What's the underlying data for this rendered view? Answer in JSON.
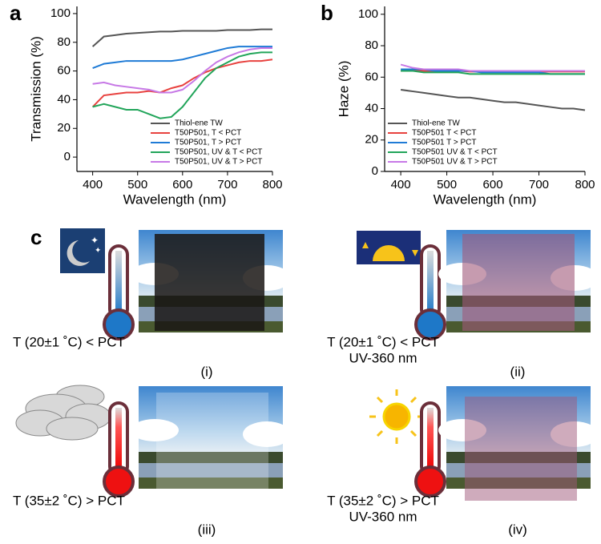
{
  "chart_data": [
    {
      "type": "line",
      "panel_label": "a",
      "xlabel": "Wavelength (nm)",
      "ylabel": "Transmission (%)",
      "x": [
        400,
        425,
        450,
        475,
        500,
        525,
        550,
        575,
        600,
        625,
        650,
        675,
        700,
        725,
        750,
        775,
        800
      ],
      "xlim": [
        365,
        800
      ],
      "xticks": [
        400,
        500,
        600,
        700,
        800
      ],
      "ylim": [
        -10,
        105
      ],
      "yticks": [
        0,
        20,
        40,
        60,
        80,
        100
      ],
      "legend": "lower right",
      "series": [
        {
          "name": "Thiol-ene TW",
          "color": "#555555",
          "values": [
            77,
            84,
            85,
            86,
            86.5,
            87,
            87.5,
            87.5,
            88,
            88,
            88,
            88,
            88.5,
            88.5,
            88.5,
            89,
            89
          ]
        },
        {
          "name": "T50P501, T < PCT",
          "color": "#e8423f",
          "values": [
            35,
            43,
            44,
            45,
            45,
            46,
            45,
            48,
            50,
            55,
            59,
            62,
            64,
            66,
            67,
            67,
            68
          ]
        },
        {
          "name": "T50P501, T > PCT",
          "color": "#1f7bd6",
          "values": [
            62,
            65,
            66,
            67,
            67,
            67,
            67,
            67,
            68,
            70,
            72,
            74,
            76,
            77,
            77,
            77,
            77
          ]
        },
        {
          "name": "T50P501, UV & T < PCT",
          "color": "#22a55a",
          "values": [
            35,
            37,
            35,
            33,
            33,
            30,
            27,
            28,
            35,
            45,
            55,
            62,
            66,
            70,
            72,
            73,
            73
          ]
        },
        {
          "name": "T50P501, UV & T > PCT",
          "color": "#c779e6",
          "values": [
            51,
            52,
            50,
            49,
            48,
            47,
            45,
            45,
            47,
            53,
            60,
            66,
            70,
            73,
            75,
            76,
            76
          ]
        }
      ]
    },
    {
      "type": "line",
      "panel_label": "b",
      "xlabel": "Wavelength (nm)",
      "ylabel": "Haze (%)",
      "x": [
        400,
        425,
        450,
        475,
        500,
        525,
        550,
        575,
        600,
        625,
        650,
        675,
        700,
        725,
        750,
        775,
        800
      ],
      "xlim": [
        365,
        800
      ],
      "xticks": [
        400,
        500,
        600,
        700,
        800
      ],
      "ylim": [
        0,
        105
      ],
      "yticks": [
        0,
        20,
        40,
        60,
        80,
        100
      ],
      "legend": "lower left",
      "series": [
        {
          "name": "Thiol-ene TW",
          "color": "#555555",
          "values": [
            52,
            51,
            50,
            49,
            48,
            47,
            47,
            46,
            45,
            44,
            44,
            43,
            42,
            41,
            40,
            40,
            39
          ]
        },
        {
          "name": "T50P501 T < PCT",
          "color": "#e8423f",
          "values": [
            64,
            64,
            64,
            64,
            64,
            64,
            63.5,
            63.5,
            63.5,
            63.5,
            63.5,
            63.5,
            63.5,
            63.5,
            63.5,
            63.5,
            63.5
          ]
        },
        {
          "name": "T50P501 T > PCT",
          "color": "#1f7bd6",
          "values": [
            65,
            65,
            65,
            64,
            64,
            64,
            64,
            63,
            63,
            63,
            63,
            63,
            63,
            62,
            62,
            62,
            62
          ]
        },
        {
          "name": "T50P501 UV & T < PCT",
          "color": "#22a55a",
          "values": [
            64,
            64,
            63,
            63,
            63,
            63,
            62,
            62,
            62,
            62,
            62,
            62,
            62,
            62,
            62,
            62,
            62
          ]
        },
        {
          "name": "T50P501 UV & T > PCT",
          "color": "#c779e6",
          "values": [
            68,
            66,
            65,
            65,
            65,
            65,
            64,
            64,
            64,
            64,
            64,
            64,
            64,
            64,
            64,
            64,
            64
          ]
        }
      ]
    }
  ],
  "panel_c": {
    "panel_label": "c",
    "panels": [
      {
        "condition": "T (20±1 ˚C) < PCT",
        "label": "(i)"
      },
      {
        "condition": "T (20±1 ˚C) < PCT",
        "uv": "UV-360 nm",
        "label": "(ii)"
      },
      {
        "condition": "T (35±2 ˚C) > PCT",
        "label": "(iii)"
      },
      {
        "condition": "T (35±2 ˚C) > PCT",
        "uv": "UV-360 nm",
        "label": "(iv)"
      }
    ]
  }
}
